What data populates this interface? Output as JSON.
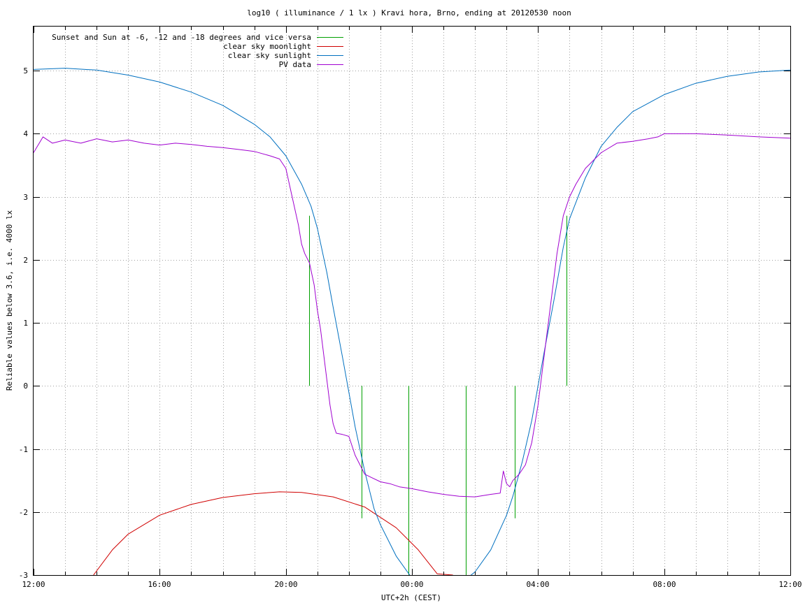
{
  "chart_data": {
    "type": "line",
    "title": "log10 ( illuminance / 1 lx ) Kravi hora, Brno, ending at 20120530 noon",
    "xlabel": "UTC+2h (CEST)",
    "ylabel": "Reliable values below 3.6, i.e. 4000 lx",
    "xlim": [
      0,
      24
    ],
    "ylim": [
      -3,
      5.7
    ],
    "grid": true,
    "legend_position": "top-left",
    "x_ticks": [
      {
        "value": 0,
        "label": "12:00"
      },
      {
        "value": 4,
        "label": "16:00"
      },
      {
        "value": 8,
        "label": "20:00"
      },
      {
        "value": 12,
        "label": "00:00"
      },
      {
        "value": 16,
        "label": "04:00"
      },
      {
        "value": 20,
        "label": "08:00"
      },
      {
        "value": 24,
        "label": "12:00"
      }
    ],
    "x_minor_ticks": [
      1,
      2,
      3,
      5,
      6,
      7,
      9,
      10,
      11,
      13,
      14,
      15,
      17,
      18,
      19,
      21,
      22,
      23
    ],
    "y_ticks": [
      {
        "value": 5,
        "label": "5"
      },
      {
        "value": 4,
        "label": "4"
      },
      {
        "value": 3,
        "label": "3"
      },
      {
        "value": 2,
        "label": "2"
      },
      {
        "value": 1,
        "label": "1"
      },
      {
        "value": 0,
        "label": "0"
      },
      {
        "value": -1,
        "label": "-1"
      },
      {
        "value": -2,
        "label": "-2"
      },
      {
        "value": -3,
        "label": "-3"
      }
    ],
    "series": [
      {
        "name": "Sunset and Sun at -6, -12 and -18 degrees and vice versa",
        "color": "#00a000",
        "kind": "vlines",
        "lines": [
          {
            "x": 8.75,
            "y0": 0,
            "y1": 2.7
          },
          {
            "x": 10.4,
            "y0": -2.1,
            "y1": 0
          },
          {
            "x": 11.9,
            "y0": -3,
            "y1": 0
          },
          {
            "x": 13.7,
            "y0": -3,
            "y1": 0
          },
          {
            "x": 15.25,
            "y0": -2.1,
            "y1": 0
          },
          {
            "x": 16.9,
            "y0": 0,
            "y1": 2.7
          }
        ]
      },
      {
        "name": "clear sky moonlight",
        "color": "#d00000",
        "kind": "line",
        "x": [
          1.9,
          2.5,
          3.0,
          4.0,
          5.0,
          6.0,
          7.0,
          7.8,
          8.5,
          9.5,
          10.5,
          11.5,
          12.2,
          12.8,
          13.3
        ],
        "y": [
          -3.0,
          -2.6,
          -2.35,
          -2.05,
          -1.88,
          -1.77,
          -1.71,
          -1.68,
          -1.69,
          -1.76,
          -1.92,
          -2.25,
          -2.6,
          -2.98,
          -3.0
        ]
      },
      {
        "name": "clear sky sunlight",
        "color": "#0070c0",
        "kind": "line",
        "x": [
          0,
          1,
          2,
          3,
          4,
          5,
          6,
          7,
          7.5,
          8,
          8.5,
          8.8,
          9,
          9.3,
          9.5,
          9.8,
          10,
          10.2,
          10.5,
          10.8,
          11,
          11.5,
          12,
          12.5,
          13,
          13.5,
          14,
          14.5,
          15,
          15.2,
          15.5,
          15.8,
          16,
          16.2,
          16.5,
          16.8,
          17,
          17.5,
          18,
          18.5,
          19,
          20,
          21,
          22,
          23,
          24
        ],
        "y": [
          5.02,
          5.04,
          5.01,
          4.93,
          4.82,
          4.66,
          4.45,
          4.15,
          3.95,
          3.65,
          3.2,
          2.85,
          2.5,
          1.8,
          1.25,
          0.45,
          -0.1,
          -0.65,
          -1.35,
          -1.95,
          -2.2,
          -2.7,
          -3.05,
          -3.2,
          -3.22,
          -3.15,
          -2.95,
          -2.6,
          -2.05,
          -1.75,
          -1.2,
          -0.55,
          0.0,
          0.55,
          1.35,
          2.2,
          2.65,
          3.3,
          3.8,
          4.1,
          4.35,
          4.62,
          4.8,
          4.91,
          4.98,
          5.01
        ]
      },
      {
        "name": "PV data",
        "color": "#a000d0",
        "kind": "line",
        "x": [
          0,
          0.3,
          0.6,
          1,
          1.5,
          2,
          2.5,
          3,
          3.5,
          4,
          4.5,
          5,
          5.5,
          6,
          6.5,
          7,
          7.5,
          7.8,
          8.0,
          8.2,
          8.4,
          8.5,
          8.6,
          8.75,
          8.9,
          9.0,
          9.1,
          9.2,
          9.3,
          9.4,
          9.5,
          9.6,
          9.8,
          10.0,
          10.2,
          10.4,
          10.5,
          10.7,
          11.0,
          11.3,
          11.6,
          12,
          12.5,
          13,
          13.5,
          14,
          14.5,
          14.8,
          14.9,
          15.0,
          15.1,
          15.2,
          15.4,
          15.6,
          15.8,
          16.0,
          16.2,
          16.4,
          16.6,
          16.8,
          17.0,
          17.2,
          17.5,
          18,
          18.5,
          19,
          19.5,
          19.8,
          20,
          21,
          22,
          23,
          24
        ],
        "y": [
          3.7,
          3.95,
          3.85,
          3.9,
          3.85,
          3.92,
          3.87,
          3.9,
          3.85,
          3.82,
          3.85,
          3.83,
          3.8,
          3.78,
          3.75,
          3.72,
          3.65,
          3.6,
          3.45,
          3.0,
          2.55,
          2.25,
          2.1,
          1.95,
          1.6,
          1.2,
          0.9,
          0.5,
          0.1,
          -0.3,
          -0.6,
          -0.75,
          -0.77,
          -0.8,
          -1.1,
          -1.3,
          -1.4,
          -1.45,
          -1.52,
          -1.55,
          -1.6,
          -1.63,
          -1.68,
          -1.72,
          -1.75,
          -1.76,
          -1.72,
          -1.7,
          -1.35,
          -1.55,
          -1.6,
          -1.5,
          -1.4,
          -1.25,
          -0.9,
          -0.3,
          0.5,
          1.3,
          2.1,
          2.7,
          3.0,
          3.2,
          3.45,
          3.7,
          3.85,
          3.88,
          3.92,
          3.95,
          4.0,
          4.0,
          3.98,
          3.95,
          3.93
        ]
      }
    ]
  }
}
